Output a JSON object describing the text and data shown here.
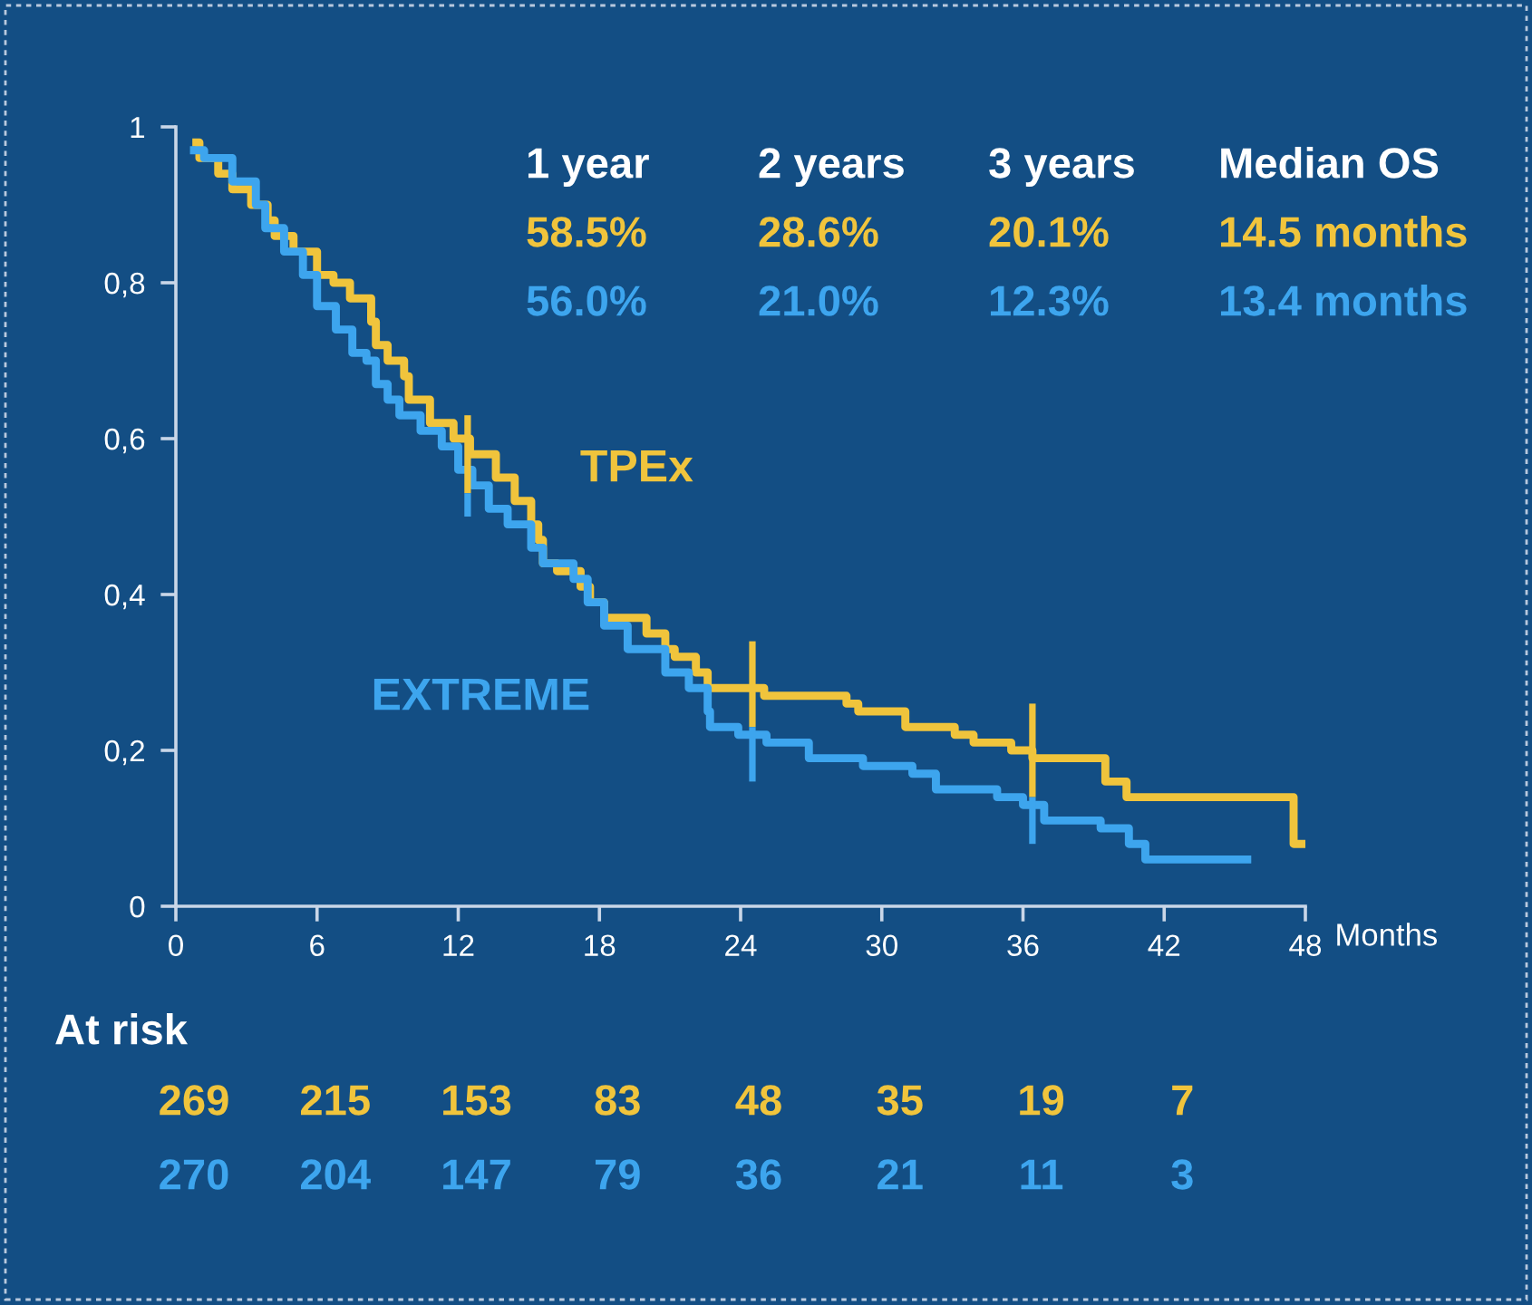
{
  "chart_data": {
    "type": "step",
    "xlabel": "Months",
    "xlim": [
      0,
      48
    ],
    "xticks": [
      0,
      6,
      12,
      18,
      24,
      30,
      36,
      42,
      48
    ],
    "ylim": [
      0,
      1
    ],
    "yticks": [
      0,
      {
        "value": 0.2,
        "label": "0,2"
      },
      {
        "value": 0.4,
        "label": "0,4"
      },
      {
        "value": 0.6,
        "label": "0,6"
      },
      {
        "value": 0.8,
        "label": "0,8"
      },
      1
    ],
    "series": [
      {
        "name": "TPEx",
        "color": "#f0c43c",
        "x": [
          0.7,
          1.0,
          1.8,
          2.4,
          3.2,
          3.9,
          4.2,
          5.0,
          6.0,
          6.7,
          7.4,
          8.3,
          8.5,
          9.0,
          9.7,
          9.9,
          10.8,
          11.8,
          12.5,
          13.6,
          14.4,
          15.1,
          15.4,
          15.6,
          16.2,
          17.2,
          17.6,
          18.2,
          20.0,
          20.8,
          21.2,
          22.1,
          22.6,
          25.0,
          28.5,
          29.0,
          31.0,
          33.1,
          33.9,
          35.5,
          36.4,
          39.5,
          40.4,
          47.5,
          48.0
        ],
        "values": [
          0.98,
          0.96,
          0.94,
          0.92,
          0.9,
          0.88,
          0.86,
          0.84,
          0.81,
          0.8,
          0.78,
          0.75,
          0.72,
          0.7,
          0.68,
          0.65,
          0.62,
          0.6,
          0.58,
          0.55,
          0.52,
          0.49,
          0.47,
          0.44,
          0.43,
          0.41,
          0.39,
          0.37,
          0.35,
          0.33,
          0.32,
          0.3,
          0.28,
          0.27,
          0.26,
          0.25,
          0.23,
          0.22,
          0.21,
          0.2,
          0.19,
          0.16,
          0.14,
          0.08,
          0.08
        ]
      },
      {
        "name": "EXTREME",
        "color": "#3da5ee",
        "x": [
          0.6,
          1.2,
          2.4,
          3.4,
          3.8,
          4.6,
          5.4,
          6.0,
          6.8,
          7.5,
          8.1,
          8.5,
          9.0,
          9.5,
          10.4,
          11.3,
          12.0,
          12.6,
          13.3,
          14.1,
          15.1,
          15.6,
          16.9,
          17.5,
          18.2,
          19.2,
          20.8,
          21.8,
          22.6,
          22.7,
          23.9,
          25.1,
          26.9,
          29.2,
          31.3,
          32.3,
          34.9,
          36.0,
          36.9,
          39.3,
          40.5,
          41.2,
          45.7
        ],
        "values": [
          0.97,
          0.96,
          0.93,
          0.9,
          0.87,
          0.84,
          0.81,
          0.77,
          0.74,
          0.71,
          0.7,
          0.67,
          0.65,
          0.63,
          0.61,
          0.59,
          0.56,
          0.54,
          0.51,
          0.49,
          0.46,
          0.44,
          0.42,
          0.39,
          0.36,
          0.33,
          0.3,
          0.28,
          0.25,
          0.23,
          0.22,
          0.21,
          0.19,
          0.18,
          0.17,
          0.15,
          0.14,
          0.13,
          0.11,
          0.1,
          0.08,
          0.06,
          0.06
        ]
      },
      {
        "type": "line",
        "color": "#f0c43c",
        "x": [
          12.4,
          12.4
        ],
        "values": [
          0.63,
          0.53
        ]
      },
      {
        "type": "line",
        "color": "#3da5ee",
        "x": [
          12.4,
          12.4
        ],
        "values": [
          0.53,
          0.5
        ]
      },
      {
        "type": "line",
        "color": "#f0c43c",
        "x": [
          24.5,
          24.5
        ],
        "values": [
          0.34,
          0.23
        ]
      },
      {
        "type": "line",
        "color": "#3da5ee",
        "x": [
          24.5,
          24.5
        ],
        "values": [
          0.23,
          0.16
        ]
      },
      {
        "type": "line",
        "color": "#f0c43c",
        "x": [
          36.4,
          36.4
        ],
        "values": [
          0.26,
          0.14
        ]
      },
      {
        "type": "line",
        "color": "#3da5ee",
        "x": [
          36.4,
          36.4
        ],
        "values": [
          0.14,
          0.08
        ]
      }
    ],
    "annotations": [
      "1 year",
      "2 years",
      "3 years",
      "Median OS",
      "58.5%",
      "28.6%",
      "20.1%",
      "14.5 months",
      "56.0%",
      "21.0%",
      "12.3%",
      "13.4 months",
      "At risk",
      "269",
      "215",
      "153",
      "83",
      "48",
      "35",
      "19",
      "7",
      "270",
      "204",
      "147",
      "79",
      "36",
      "21",
      "11",
      "3"
    ]
  }
}
